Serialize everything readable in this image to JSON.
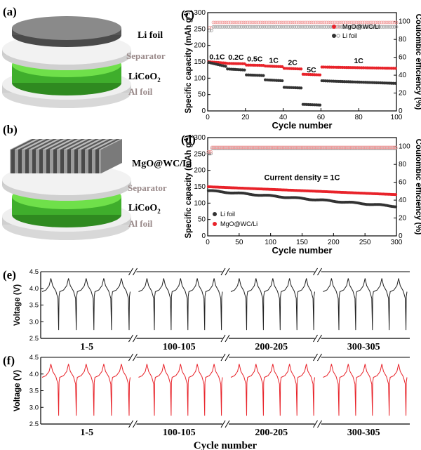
{
  "panels": {
    "a": {
      "tag": "(a)",
      "labels": {
        "li": "Li foil",
        "sep": "Separator",
        "cath": "LiCoO",
        "cath_sub": "2",
        "al": "Al foil"
      }
    },
    "b": {
      "tag": "(b)",
      "labels": {
        "anode": "MgO@WC/Li",
        "sep": "Separator",
        "cath": "LiCoO",
        "cath_sub": "2",
        "al": "Al foil"
      }
    }
  },
  "colors": {
    "red": "#e8232a",
    "pink": "#f19a9a",
    "grey": "#333333",
    "green": "#5fd13f",
    "dark_green": "#2f8a20"
  },
  "chart_data": [
    {
      "id": "c",
      "tag": "(c)",
      "type": "scatter",
      "xlabel": "Cycle number",
      "ylabel": "Specific capacity (mAh g-1)",
      "ylabel_main": "Specific capacity (mAh g",
      "ylabel_sup": "-1",
      "ylabel_end": ")",
      "y2label": "Coulombic efficiency (%)",
      "xlim": [
        0,
        100
      ],
      "ylim": [
        0,
        300
      ],
      "y2lim": [
        0,
        110
      ],
      "xticks": [
        0,
        20,
        40,
        60,
        80,
        100
      ],
      "yticks": [
        0,
        50,
        100,
        150,
        200,
        250,
        300
      ],
      "y2ticks": [
        0,
        20,
        40,
        60,
        80,
        100
      ],
      "legend": [
        "MgO@WC/Li",
        "Li foil"
      ],
      "legend_position": "top-right",
      "rate_labels": [
        "0.1C",
        "0.2C",
        "0.5C",
        "1C",
        "2C",
        "5C",
        "1C"
      ],
      "series": [
        {
          "name": "MgO@WC/Li",
          "segments": [
            [
              0,
              10,
              150,
              146
            ],
            [
              10,
              20,
              145,
              144
            ],
            [
              20,
              30,
              140,
              139
            ],
            [
              30,
              40,
              137,
              135
            ],
            [
              40,
              50,
              130,
              128
            ],
            [
              50,
              60,
              112,
              110
            ],
            [
              60,
              100,
              134,
              130
            ]
          ],
          "ce": [
            93,
            99
          ]
        },
        {
          "name": "Li foil",
          "segments": [
            [
              0,
              10,
              148,
              136
            ],
            [
              10,
              20,
              128,
              125
            ],
            [
              20,
              30,
              110,
              108
            ],
            [
              30,
              40,
              95,
              92
            ],
            [
              40,
              50,
              72,
              70
            ],
            [
              50,
              60,
              20,
              18
            ],
            [
              60,
              100,
              92,
              84
            ]
          ],
          "ce": [
            90,
            96
          ]
        }
      ]
    },
    {
      "id": "d",
      "tag": "(d)",
      "type": "scatter",
      "xlabel": "Cycle number",
      "ylabel": "Specific capacity (mAh g-1)",
      "ylabel_main": "Specific capacity (mAh g",
      "ylabel_sup": "-1",
      "ylabel_end": ")",
      "y2label": "Coulombic efficiency (%)",
      "xlim": [
        0,
        300
      ],
      "ylim": [
        0,
        300
      ],
      "y2lim": [
        0,
        110
      ],
      "xticks": [
        0,
        50,
        100,
        150,
        200,
        250,
        300
      ],
      "yticks": [
        0,
        50,
        100,
        150,
        200,
        250,
        300
      ],
      "y2ticks": [
        0,
        20,
        40,
        60,
        80,
        100
      ],
      "legend": [
        "Li foil",
        "MgO@WC/Li"
      ],
      "legend_position": "bottom-left",
      "annotation": "Current density = 1C",
      "series": [
        {
          "name": "Li foil",
          "start": 138,
          "end": 90,
          "ce": [
            92,
            98
          ]
        },
        {
          "name": "MgO@WC/Li",
          "start": 150,
          "end": 126,
          "ce": [
            94,
            99
          ]
        }
      ]
    },
    {
      "id": "e",
      "tag": "(e)",
      "type": "line",
      "ylabel": "Voltage (V)",
      "ylim": [
        2.5,
        4.5
      ],
      "yticks": [
        2.5,
        3.0,
        3.5,
        4.0,
        4.5
      ],
      "groups": [
        "1-5",
        "100-105",
        "200-205",
        "300-305"
      ],
      "cycle": {
        "charge_top": 4.3,
        "plateau": 3.9,
        "discharge_bottom": 2.75
      },
      "color": "#222222"
    },
    {
      "id": "f",
      "tag": "(f)",
      "type": "line",
      "ylabel": "Voltage (V)",
      "xlabel": "Cycle number",
      "ylim": [
        2.5,
        4.5
      ],
      "yticks": [
        2.5,
        3.0,
        3.5,
        4.0,
        4.5
      ],
      "groups": [
        "1-5",
        "100-105",
        "200-205",
        "300-305"
      ],
      "cycle": {
        "charge_top": 4.3,
        "plateau": 3.9,
        "discharge_bottom": 2.75
      },
      "color": "#e8232a"
    }
  ]
}
